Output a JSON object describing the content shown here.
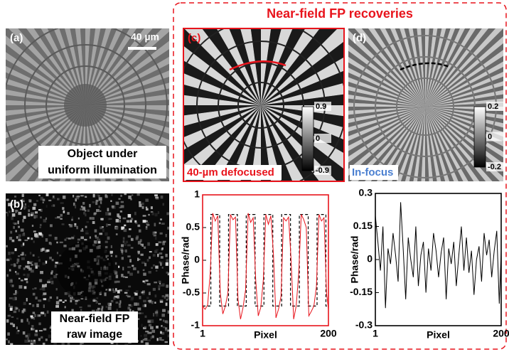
{
  "title": "Near-field FP recoveries",
  "panels": {
    "a": {
      "label": "(a)",
      "scale_bar": "40 µm",
      "caption": [
        "Object under",
        "uniform illumination"
      ]
    },
    "b": {
      "label": "(b)",
      "caption": [
        "Near-field FP",
        "raw image"
      ]
    },
    "c": {
      "label": "(c)",
      "caption": "40-µm defocused",
      "colorbar_ticks": [
        0.9,
        0,
        -0.9
      ]
    },
    "d": {
      "label": "(d)",
      "caption": "In-focus",
      "colorbar_ticks": [
        0.2,
        0,
        -0.2
      ]
    }
  },
  "chart_data": [
    {
      "type": "line",
      "xlabel": "Pixel",
      "ylabel": "Phase/rad",
      "frame_color": "#e8141c",
      "xlim": [
        1,
        200
      ],
      "xticks": [
        1,
        200
      ],
      "ylim": [
        -1,
        1
      ],
      "yticks": [
        -1,
        -0.5,
        0,
        0.5,
        1
      ],
      "series": [
        {
          "color": "#000000",
          "dashed": true,
          "x": [
            1,
            14,
            14,
            28,
            28,
            42,
            42,
            56,
            56,
            70,
            70,
            84,
            84,
            98,
            98,
            112,
            112,
            126,
            126,
            140,
            140,
            154,
            154,
            168,
            168,
            182,
            182,
            196,
            196,
            200
          ],
          "values": [
            -0.7,
            -0.7,
            0.7,
            0.7,
            -0.7,
            -0.7,
            0.7,
            0.7,
            -0.7,
            -0.7,
            0.7,
            0.7,
            -0.7,
            -0.7,
            0.7,
            0.7,
            -0.7,
            -0.7,
            0.7,
            0.7,
            -0.7,
            -0.7,
            0.7,
            0.7,
            -0.7,
            -0.7,
            0.7,
            0.7,
            -0.7,
            -0.7
          ]
        },
        {
          "color": "#e8141c",
          "dashed": false,
          "x": [
            1,
            5,
            9,
            13,
            17,
            21,
            25,
            29,
            33,
            37,
            41,
            45,
            49,
            53,
            57,
            61,
            65,
            69,
            73,
            77,
            81,
            85,
            89,
            93,
            97,
            101,
            105,
            109,
            113,
            117,
            121,
            125,
            129,
            133,
            137,
            141,
            145,
            149,
            153,
            157,
            161,
            165,
            169,
            173,
            177,
            181,
            185,
            189,
            193,
            197,
            200
          ],
          "values": [
            -0.7,
            -0.75,
            -0.68,
            -0.2,
            0.72,
            0.6,
            0.68,
            -0.5,
            -0.82,
            -0.7,
            -0.5,
            0.7,
            0.62,
            0.66,
            -0.6,
            -0.9,
            -0.72,
            -0.45,
            0.72,
            0.58,
            0.65,
            -0.3,
            -0.85,
            -0.72,
            -0.3,
            0.7,
            0.55,
            0.68,
            0.1,
            -0.88,
            -0.75,
            -0.55,
            0.65,
            0.6,
            0.66,
            0.0,
            -0.9,
            -0.7,
            -0.2,
            0.7,
            0.62,
            0.5,
            -0.85,
            -0.78,
            -0.7,
            -0.4,
            0.7,
            0.6,
            0.65,
            -0.5,
            -0.75
          ]
        }
      ]
    },
    {
      "type": "line",
      "xlabel": "Pixel",
      "ylabel": "Phase/rad",
      "frame_color": "#000000",
      "xlim": [
        1,
        200
      ],
      "xticks": [
        1,
        200
      ],
      "ylim": [
        -0.3,
        0.3
      ],
      "yticks": [
        -0.3,
        -0.15,
        0,
        0.15,
        0.3
      ],
      "series": [
        {
          "color": "#000000",
          "dashed": false,
          "x": [
            1,
            5,
            9,
            13,
            17,
            21,
            25,
            29,
            33,
            37,
            41,
            45,
            49,
            53,
            57,
            61,
            65,
            69,
            73,
            77,
            81,
            85,
            89,
            93,
            97,
            101,
            105,
            109,
            113,
            117,
            121,
            125,
            129,
            133,
            137,
            141,
            145,
            149,
            153,
            157,
            161,
            165,
            169,
            173,
            177,
            181,
            185,
            189,
            193,
            197,
            200
          ],
          "values": [
            0.2,
            0.08,
            -0.05,
            0.15,
            -0.22,
            0.05,
            -0.02,
            0.12,
            0.02,
            -0.1,
            0.26,
            0.05,
            -0.18,
            0.1,
            0.0,
            -0.08,
            0.15,
            -0.12,
            0.02,
            0.08,
            -0.15,
            0.05,
            -0.05,
            0.12,
            0.04,
            -0.08,
            0.03,
            0.1,
            -0.18,
            0.05,
            -0.02,
            0.08,
            -0.12,
            0.02,
            0.15,
            -0.05,
            0.1,
            -0.06,
            0.04,
            -0.16,
            0.0,
            0.06,
            -0.1,
            0.12,
            0.02,
            0.09,
            -0.08,
            0.04,
            0.13,
            -0.2,
            0.04
          ]
        }
      ]
    }
  ]
}
